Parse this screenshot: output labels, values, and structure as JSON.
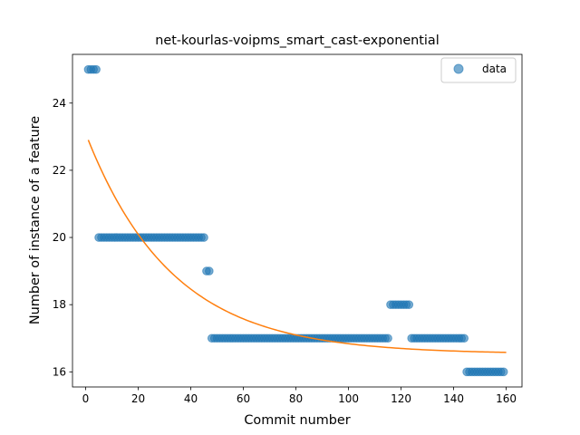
{
  "chart_data": {
    "type": "scatter",
    "title": "net-kourlas-voipms_smart_cast-exponential",
    "xlabel": "Commit number",
    "ylabel": "Number of instance of a feature",
    "xlim": [
      -5,
      166
    ],
    "ylim": [
      15.55,
      25.45
    ],
    "xticks": [
      0,
      20,
      40,
      60,
      80,
      100,
      120,
      140,
      160
    ],
    "yticks": [
      16,
      18,
      20,
      22,
      24
    ],
    "grid": false,
    "legend": {
      "placement": "upper right",
      "entries": [
        "data"
      ]
    },
    "colors": {
      "data": "#1f77b4",
      "fit": "#ff7f0e"
    },
    "series": [
      {
        "name": "data",
        "kind": "scatter",
        "segments": [
          {
            "x_start": 1,
            "x_end": 4,
            "y": 25
          },
          {
            "x_start": 5,
            "x_end": 45,
            "y": 20
          },
          {
            "x_start": 46,
            "x_end": 47,
            "y": 19
          },
          {
            "x_start": 48,
            "x_end": 115,
            "y": 17
          },
          {
            "x_start": 116,
            "x_end": 123,
            "y": 18
          },
          {
            "x_start": 124,
            "x_end": 144,
            "y": 17
          },
          {
            "x_start": 145,
            "x_end": 159,
            "y": 16
          }
        ]
      },
      {
        "kind": "line",
        "model": "exponential",
        "x_range": [
          1,
          160
        ],
        "params": {
          "a": 6.57,
          "b": 0.0306,
          "c": 16.53
        }
      }
    ]
  }
}
